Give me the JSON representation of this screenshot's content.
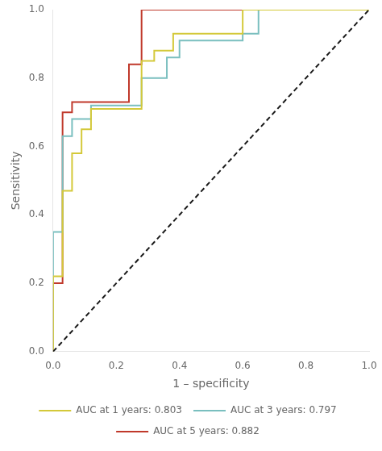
{
  "chart_data": {
    "type": "line",
    "xlabel": "1 – specificity",
    "ylabel": "Sensitivity",
    "xlim": [
      0.0,
      1.0
    ],
    "ylim": [
      0.0,
      1.0
    ],
    "xticks": [
      {
        "value": 0.0,
        "label": "0.0"
      },
      0.2,
      0.4,
      0.6,
      0.8,
      {
        "value": 1.0,
        "label": "1.0"
      }
    ],
    "yticks": [
      {
        "value": 0.0,
        "label": "0.0"
      },
      0.2,
      0.4,
      0.6,
      0.8,
      {
        "value": 1.0,
        "label": "1.0"
      }
    ],
    "grid": false,
    "legend": "bottom",
    "series": [
      {
        "color": "#1a1a1a",
        "line_style": "dashed",
        "x": [
          0,
          1
        ],
        "values": [
          0,
          1
        ]
      },
      {
        "name": "AUC at 1 years: 0.803",
        "color": "#d4c93a",
        "line_style": "solid",
        "x": [
          0.0,
          0.0,
          0.03,
          0.03,
          0.06,
          0.06,
          0.09,
          0.09,
          0.12,
          0.12,
          0.28,
          0.28,
          0.32,
          0.32,
          0.38,
          0.38,
          0.6,
          0.6,
          1.0
        ],
        "values": [
          0.0,
          0.22,
          0.22,
          0.47,
          0.47,
          0.58,
          0.58,
          0.65,
          0.65,
          0.71,
          0.71,
          0.85,
          0.85,
          0.88,
          0.88,
          0.93,
          0.93,
          1.0,
          1.0
        ]
      },
      {
        "name": "AUC at 3 years: 0.797",
        "color": "#7abfbf",
        "line_style": "solid",
        "x": [
          0.0,
          0.0,
          0.03,
          0.03,
          0.06,
          0.06,
          0.12,
          0.12,
          0.28,
          0.28,
          0.36,
          0.36,
          0.4,
          0.4,
          0.6,
          0.6,
          0.65,
          0.65,
          1.0
        ],
        "values": [
          0.0,
          0.35,
          0.35,
          0.63,
          0.63,
          0.68,
          0.68,
          0.72,
          0.72,
          0.8,
          0.8,
          0.86,
          0.86,
          0.91,
          0.91,
          0.93,
          0.93,
          1.0,
          1.0
        ]
      },
      {
        "name": "AUC at 5 years: 0.882",
        "color": "#c0392b",
        "line_style": "solid",
        "x": [
          0.0,
          0.0,
          0.03,
          0.03,
          0.06,
          0.06,
          0.24,
          0.24,
          0.28,
          0.28,
          0.6,
          0.6,
          1.0
        ],
        "values": [
          0.0,
          0.2,
          0.2,
          0.7,
          0.7,
          0.73,
          0.73,
          0.84,
          0.84,
          1.0,
          1.0,
          1.0,
          1.0
        ]
      }
    ]
  }
}
